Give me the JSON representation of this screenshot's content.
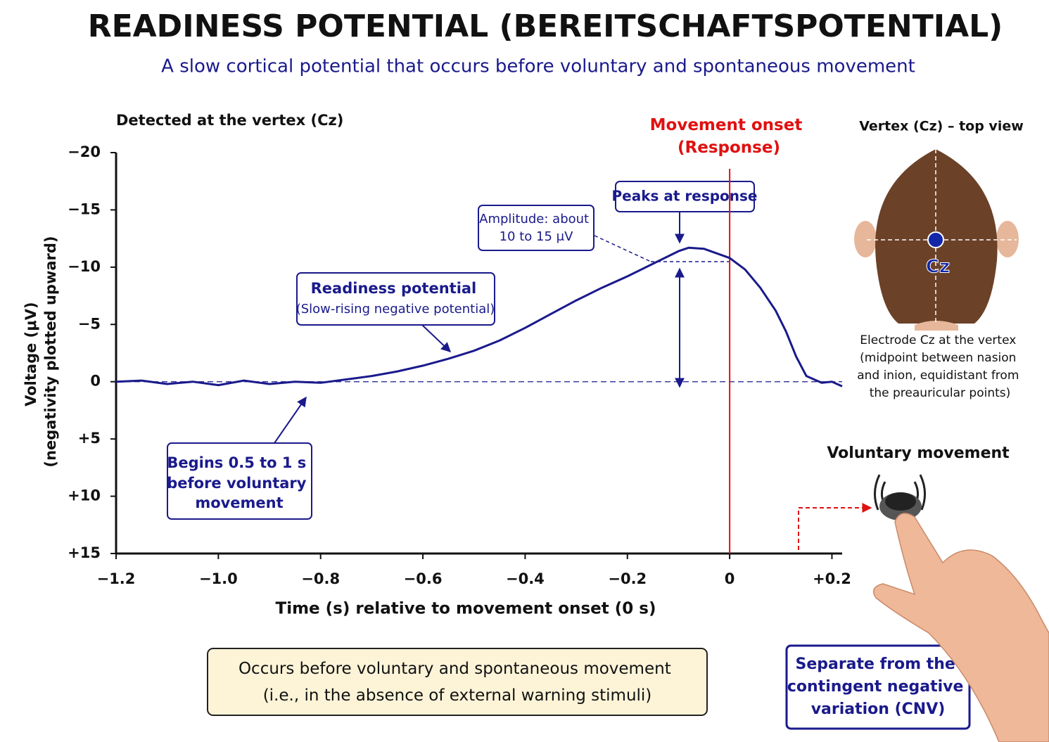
{
  "chart_data": {
    "type": "line",
    "title": "READINESS POTENTIAL (BEREITSCHAFTSPOTENTIAL)",
    "subtitle": "A slow cortical potential that occurs before voluntary and spontaneous movement",
    "y_caption": "Detected at the vertex (Cz)",
    "y_label": [
      "Voltage (μV)",
      "(negativity plotted upward)"
    ],
    "x_label": "Time (s) relative to movement onset (0 s)",
    "xlim": [
      -1.2,
      0.22
    ],
    "xticks": [
      {
        "value": -1.2,
        "label": "−1.2"
      },
      {
        "value": -1.0,
        "label": "−1.0"
      },
      {
        "value": -0.8,
        "label": "−0.8"
      },
      {
        "value": -0.6,
        "label": "−0.6"
      },
      {
        "value": -0.4,
        "label": "−0.4"
      },
      {
        "value": -0.2,
        "label": "−0.2"
      },
      0,
      {
        "value": 0.2,
        "label": "+0.2"
      }
    ],
    "ylim": [
      -20,
      15
    ],
    "yticks": [
      {
        "value": -20,
        "label": "−20"
      },
      {
        "value": -15,
        "label": "−15"
      },
      {
        "value": -10,
        "label": "−10"
      },
      {
        "value": -5,
        "label": "−5"
      },
      0,
      {
        "value": 5,
        "label": "+5"
      },
      {
        "value": 10,
        "label": "+10"
      },
      {
        "value": 15,
        "label": "+15"
      }
    ],
    "series": [
      {
        "name": "Readiness potential",
        "color": "#1a1a8c",
        "x": [
          -1.2,
          -1.15,
          -1.1,
          -1.05,
          -1.0,
          -0.95,
          -0.9,
          -0.85,
          -0.8,
          -0.75,
          -0.7,
          -0.65,
          -0.6,
          -0.55,
          -0.5,
          -0.45,
          -0.4,
          -0.35,
          -0.3,
          -0.25,
          -0.2,
          -0.15,
          -0.1,
          -0.08,
          -0.05,
          0,
          0.03,
          0.06,
          0.09,
          0.11,
          0.13,
          0.15,
          0.18,
          0.2,
          0.22
        ],
        "values": [
          0,
          -0.1,
          0.2,
          0,
          0.3,
          -0.1,
          0.2,
          0,
          0.1,
          -0.2,
          -0.5,
          -0.9,
          -1.4,
          -2,
          -2.7,
          -3.6,
          -4.7,
          -5.9,
          -7.1,
          -8.2,
          -9.2,
          -10.3,
          -11.4,
          -11.7,
          -11.6,
          -10.8,
          -9.8,
          -8.2,
          -6.2,
          -4.4,
          -2.2,
          -0.5,
          0.1,
          0,
          0.4
        ]
      }
    ],
    "onset": {
      "x": 0,
      "color": "#e01010",
      "label": [
        "Movement onset",
        "(Response)"
      ]
    },
    "annotations": {
      "peak": "Peaks at response",
      "amplitude": [
        "Amplitude: about",
        "10 to 15 μV"
      ],
      "rp": [
        "Readiness potential",
        "(Slow-rising negative potential)"
      ],
      "begins": [
        "Begins 0.5 to 1 s",
        "before voluntary",
        "movement"
      ],
      "bottom": [
        "Occurs before voluntary and spontaneous movement",
        "(i.e., in the absence of external warning stimuli)"
      ],
      "vertex_title": "Vertex (Cz) – top view",
      "cz": "Cz",
      "vertex_caption": [
        "Electrode Cz at the vertex",
        "(midpoint between nasion",
        "and inion, equidistant from",
        "the preauricular points)"
      ],
      "movement": "Voluntary movement",
      "cnv": [
        "Separate from the",
        "contingent negative",
        "variation (CNV)"
      ]
    }
  }
}
